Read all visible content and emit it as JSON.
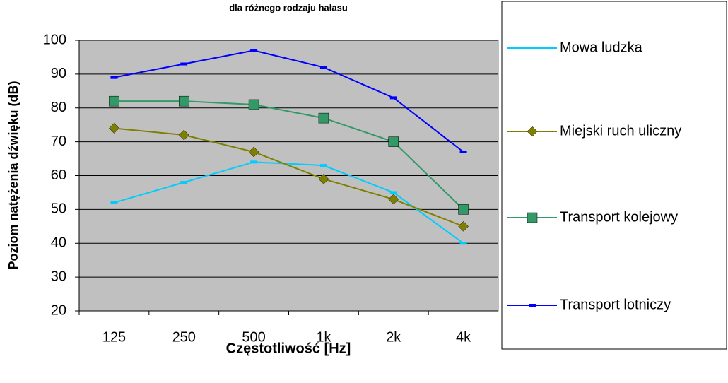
{
  "chart_data": {
    "type": "line",
    "title": "dla różnego rodzaju hałasu",
    "xlabel": "Częstotliwość [Hz]",
    "ylabel": "Poziom natężenia dźwięku (dB)",
    "categories": [
      "125",
      "250",
      "500",
      "1k",
      "2k",
      "4k"
    ],
    "series": [
      {
        "name": "Mowa ludzka",
        "color": "#00ccff",
        "marker": "dash",
        "values": [
          52,
          58,
          64,
          63,
          55,
          40
        ]
      },
      {
        "name": "Miejski ruch uliczny",
        "color": "#808000",
        "marker": "diamond",
        "values": [
          74,
          72,
          67,
          59,
          53,
          45
        ]
      },
      {
        "name": "Transport kolejowy",
        "color": "#339966",
        "marker": "square",
        "values": [
          82,
          82,
          81,
          77,
          70,
          50
        ]
      },
      {
        "name": "Transport lotniczy",
        "color": "#0000ff",
        "marker": "dash",
        "values": [
          89,
          93,
          97,
          92,
          83,
          67
        ]
      }
    ],
    "ylim": [
      20,
      100
    ],
    "yticks": [
      20,
      30,
      40,
      50,
      60,
      70,
      80,
      90,
      100
    ],
    "grid": true,
    "legend": "right"
  }
}
